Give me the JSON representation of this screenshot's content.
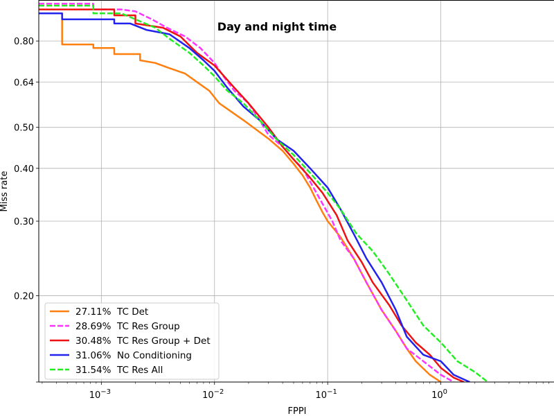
{
  "chart_data": {
    "type": "line",
    "title": "Day and night time",
    "xlabel": "FPPI",
    "ylabel": "Miss rate",
    "x_scale": "log",
    "y_scale": "log",
    "xlim": [
      0.00028,
      10
    ],
    "ylim": [
      0.125,
      1.0
    ],
    "x_ticks": [
      {
        "value": 0.001,
        "base": "10",
        "exp": "−3"
      },
      {
        "value": 0.01,
        "base": "10",
        "exp": "−2"
      },
      {
        "value": 0.1,
        "base": "10",
        "exp": "−1"
      },
      {
        "value": 1,
        "base": "10",
        "exp": "0"
      }
    ],
    "y_ticks": [
      {
        "value": 0.8,
        "label": "0.80"
      },
      {
        "value": 0.64,
        "label": "0.64"
      },
      {
        "value": 0.5,
        "label": "0.50"
      },
      {
        "value": 0.4,
        "label": "0.40"
      },
      {
        "value": 0.3,
        "label": "0.30"
      },
      {
        "value": 0.2,
        "label": "0.20"
      }
    ],
    "grid": true,
    "legend_position": "bottom-left",
    "series": [
      {
        "name": "27.11%  TC Det",
        "color": "#ff7f0e",
        "dash": false,
        "points": [
          [
            0.00028,
            0.93
          ],
          [
            0.00045,
            0.93
          ],
          [
            0.00045,
            0.785
          ],
          [
            0.00085,
            0.785
          ],
          [
            0.00085,
            0.77
          ],
          [
            0.0013,
            0.77
          ],
          [
            0.0013,
            0.745
          ],
          [
            0.0022,
            0.745
          ],
          [
            0.0022,
            0.72
          ],
          [
            0.003,
            0.71
          ],
          [
            0.004,
            0.69
          ],
          [
            0.0055,
            0.67
          ],
          [
            0.007,
            0.64
          ],
          [
            0.009,
            0.61
          ],
          [
            0.011,
            0.57
          ],
          [
            0.014,
            0.545
          ],
          [
            0.018,
            0.52
          ],
          [
            0.022,
            0.5
          ],
          [
            0.03,
            0.47
          ],
          [
            0.04,
            0.44
          ],
          [
            0.05,
            0.41
          ],
          [
            0.06,
            0.385
          ],
          [
            0.07,
            0.36
          ],
          [
            0.08,
            0.335
          ],
          [
            0.09,
            0.315
          ],
          [
            0.1,
            0.3
          ],
          [
            0.13,
            0.275
          ],
          [
            0.17,
            0.245
          ],
          [
            0.22,
            0.215
          ],
          [
            0.3,
            0.185
          ],
          [
            0.4,
            0.165
          ],
          [
            0.5,
            0.15
          ],
          [
            0.6,
            0.14
          ],
          [
            0.8,
            0.13
          ],
          [
            1.0,
            0.125
          ]
        ]
      },
      {
        "name": "28.69%  TC Res Group",
        "color": "#ff33ff",
        "dash": true,
        "points": [
          [
            0.00028,
            0.98
          ],
          [
            0.00085,
            0.98
          ],
          [
            0.00085,
            0.95
          ],
          [
            0.0015,
            0.95
          ],
          [
            0.002,
            0.94
          ],
          [
            0.0028,
            0.9
          ],
          [
            0.0038,
            0.86
          ],
          [
            0.0055,
            0.82
          ],
          [
            0.0075,
            0.77
          ],
          [
            0.01,
            0.71
          ],
          [
            0.012,
            0.66
          ],
          [
            0.015,
            0.61
          ],
          [
            0.02,
            0.57
          ],
          [
            0.025,
            0.52
          ],
          [
            0.03,
            0.48
          ],
          [
            0.04,
            0.45
          ],
          [
            0.05,
            0.42
          ],
          [
            0.06,
            0.4
          ],
          [
            0.075,
            0.36
          ],
          [
            0.09,
            0.33
          ],
          [
            0.11,
            0.3
          ],
          [
            0.13,
            0.27
          ],
          [
            0.17,
            0.245
          ],
          [
            0.22,
            0.215
          ],
          [
            0.3,
            0.185
          ],
          [
            0.4,
            0.165
          ],
          [
            0.5,
            0.15
          ],
          [
            0.7,
            0.14
          ],
          [
            1.0,
            0.13
          ],
          [
            1.3,
            0.125
          ]
        ]
      },
      {
        "name": "30.48%  TC Res Group + Det",
        "color": "#ee1111",
        "dash": false,
        "points": [
          [
            0.00028,
            0.95
          ],
          [
            0.0013,
            0.95
          ],
          [
            0.0013,
            0.92
          ],
          [
            0.002,
            0.92
          ],
          [
            0.002,
            0.88
          ],
          [
            0.0035,
            0.86
          ],
          [
            0.005,
            0.82
          ],
          [
            0.007,
            0.75
          ],
          [
            0.01,
            0.7
          ],
          [
            0.015,
            0.62
          ],
          [
            0.02,
            0.57
          ],
          [
            0.025,
            0.53
          ],
          [
            0.03,
            0.5
          ],
          [
            0.04,
            0.45
          ],
          [
            0.05,
            0.42
          ],
          [
            0.07,
            0.38
          ],
          [
            0.09,
            0.35
          ],
          [
            0.12,
            0.31
          ],
          [
            0.15,
            0.27
          ],
          [
            0.2,
            0.24
          ],
          [
            0.25,
            0.215
          ],
          [
            0.35,
            0.19
          ],
          [
            0.45,
            0.17
          ],
          [
            0.6,
            0.155
          ],
          [
            0.8,
            0.145
          ],
          [
            1.0,
            0.135
          ],
          [
            1.3,
            0.128
          ],
          [
            1.6,
            0.125
          ]
        ]
      },
      {
        "name": "31.06%  No Conditioning",
        "color": "#2222ee",
        "dash": false,
        "points": [
          [
            0.00028,
            0.93
          ],
          [
            0.00045,
            0.93
          ],
          [
            0.00045,
            0.9
          ],
          [
            0.0013,
            0.9
          ],
          [
            0.0013,
            0.88
          ],
          [
            0.0018,
            0.88
          ],
          [
            0.0025,
            0.85
          ],
          [
            0.004,
            0.83
          ],
          [
            0.006,
            0.77
          ],
          [
            0.008,
            0.72
          ],
          [
            0.01,
            0.68
          ],
          [
            0.013,
            0.62
          ],
          [
            0.018,
            0.56
          ],
          [
            0.025,
            0.52
          ],
          [
            0.035,
            0.47
          ],
          [
            0.05,
            0.44
          ],
          [
            0.07,
            0.4
          ],
          [
            0.1,
            0.36
          ],
          [
            0.13,
            0.32
          ],
          [
            0.17,
            0.28
          ],
          [
            0.22,
            0.245
          ],
          [
            0.3,
            0.215
          ],
          [
            0.4,
            0.185
          ],
          [
            0.5,
            0.16
          ],
          [
            0.7,
            0.145
          ],
          [
            1.0,
            0.14
          ],
          [
            1.3,
            0.13
          ],
          [
            1.8,
            0.125
          ]
        ]
      },
      {
        "name": "31.54%  TC Res All",
        "color": "#22ee22",
        "dash": true,
        "points": [
          [
            0.00028,
            0.97
          ],
          [
            0.00085,
            0.97
          ],
          [
            0.00085,
            0.93
          ],
          [
            0.0015,
            0.93
          ],
          [
            0.002,
            0.9
          ],
          [
            0.003,
            0.86
          ],
          [
            0.004,
            0.81
          ],
          [
            0.006,
            0.75
          ],
          [
            0.008,
            0.7
          ],
          [
            0.01,
            0.66
          ],
          [
            0.013,
            0.61
          ],
          [
            0.018,
            0.57
          ],
          [
            0.025,
            0.52
          ],
          [
            0.035,
            0.47
          ],
          [
            0.05,
            0.43
          ],
          [
            0.07,
            0.39
          ],
          [
            0.1,
            0.35
          ],
          [
            0.13,
            0.32
          ],
          [
            0.18,
            0.28
          ],
          [
            0.25,
            0.255
          ],
          [
            0.35,
            0.225
          ],
          [
            0.5,
            0.195
          ],
          [
            0.7,
            0.17
          ],
          [
            1.0,
            0.155
          ],
          [
            1.4,
            0.14
          ],
          [
            2.0,
            0.132
          ],
          [
            2.6,
            0.125
          ]
        ]
      }
    ]
  }
}
